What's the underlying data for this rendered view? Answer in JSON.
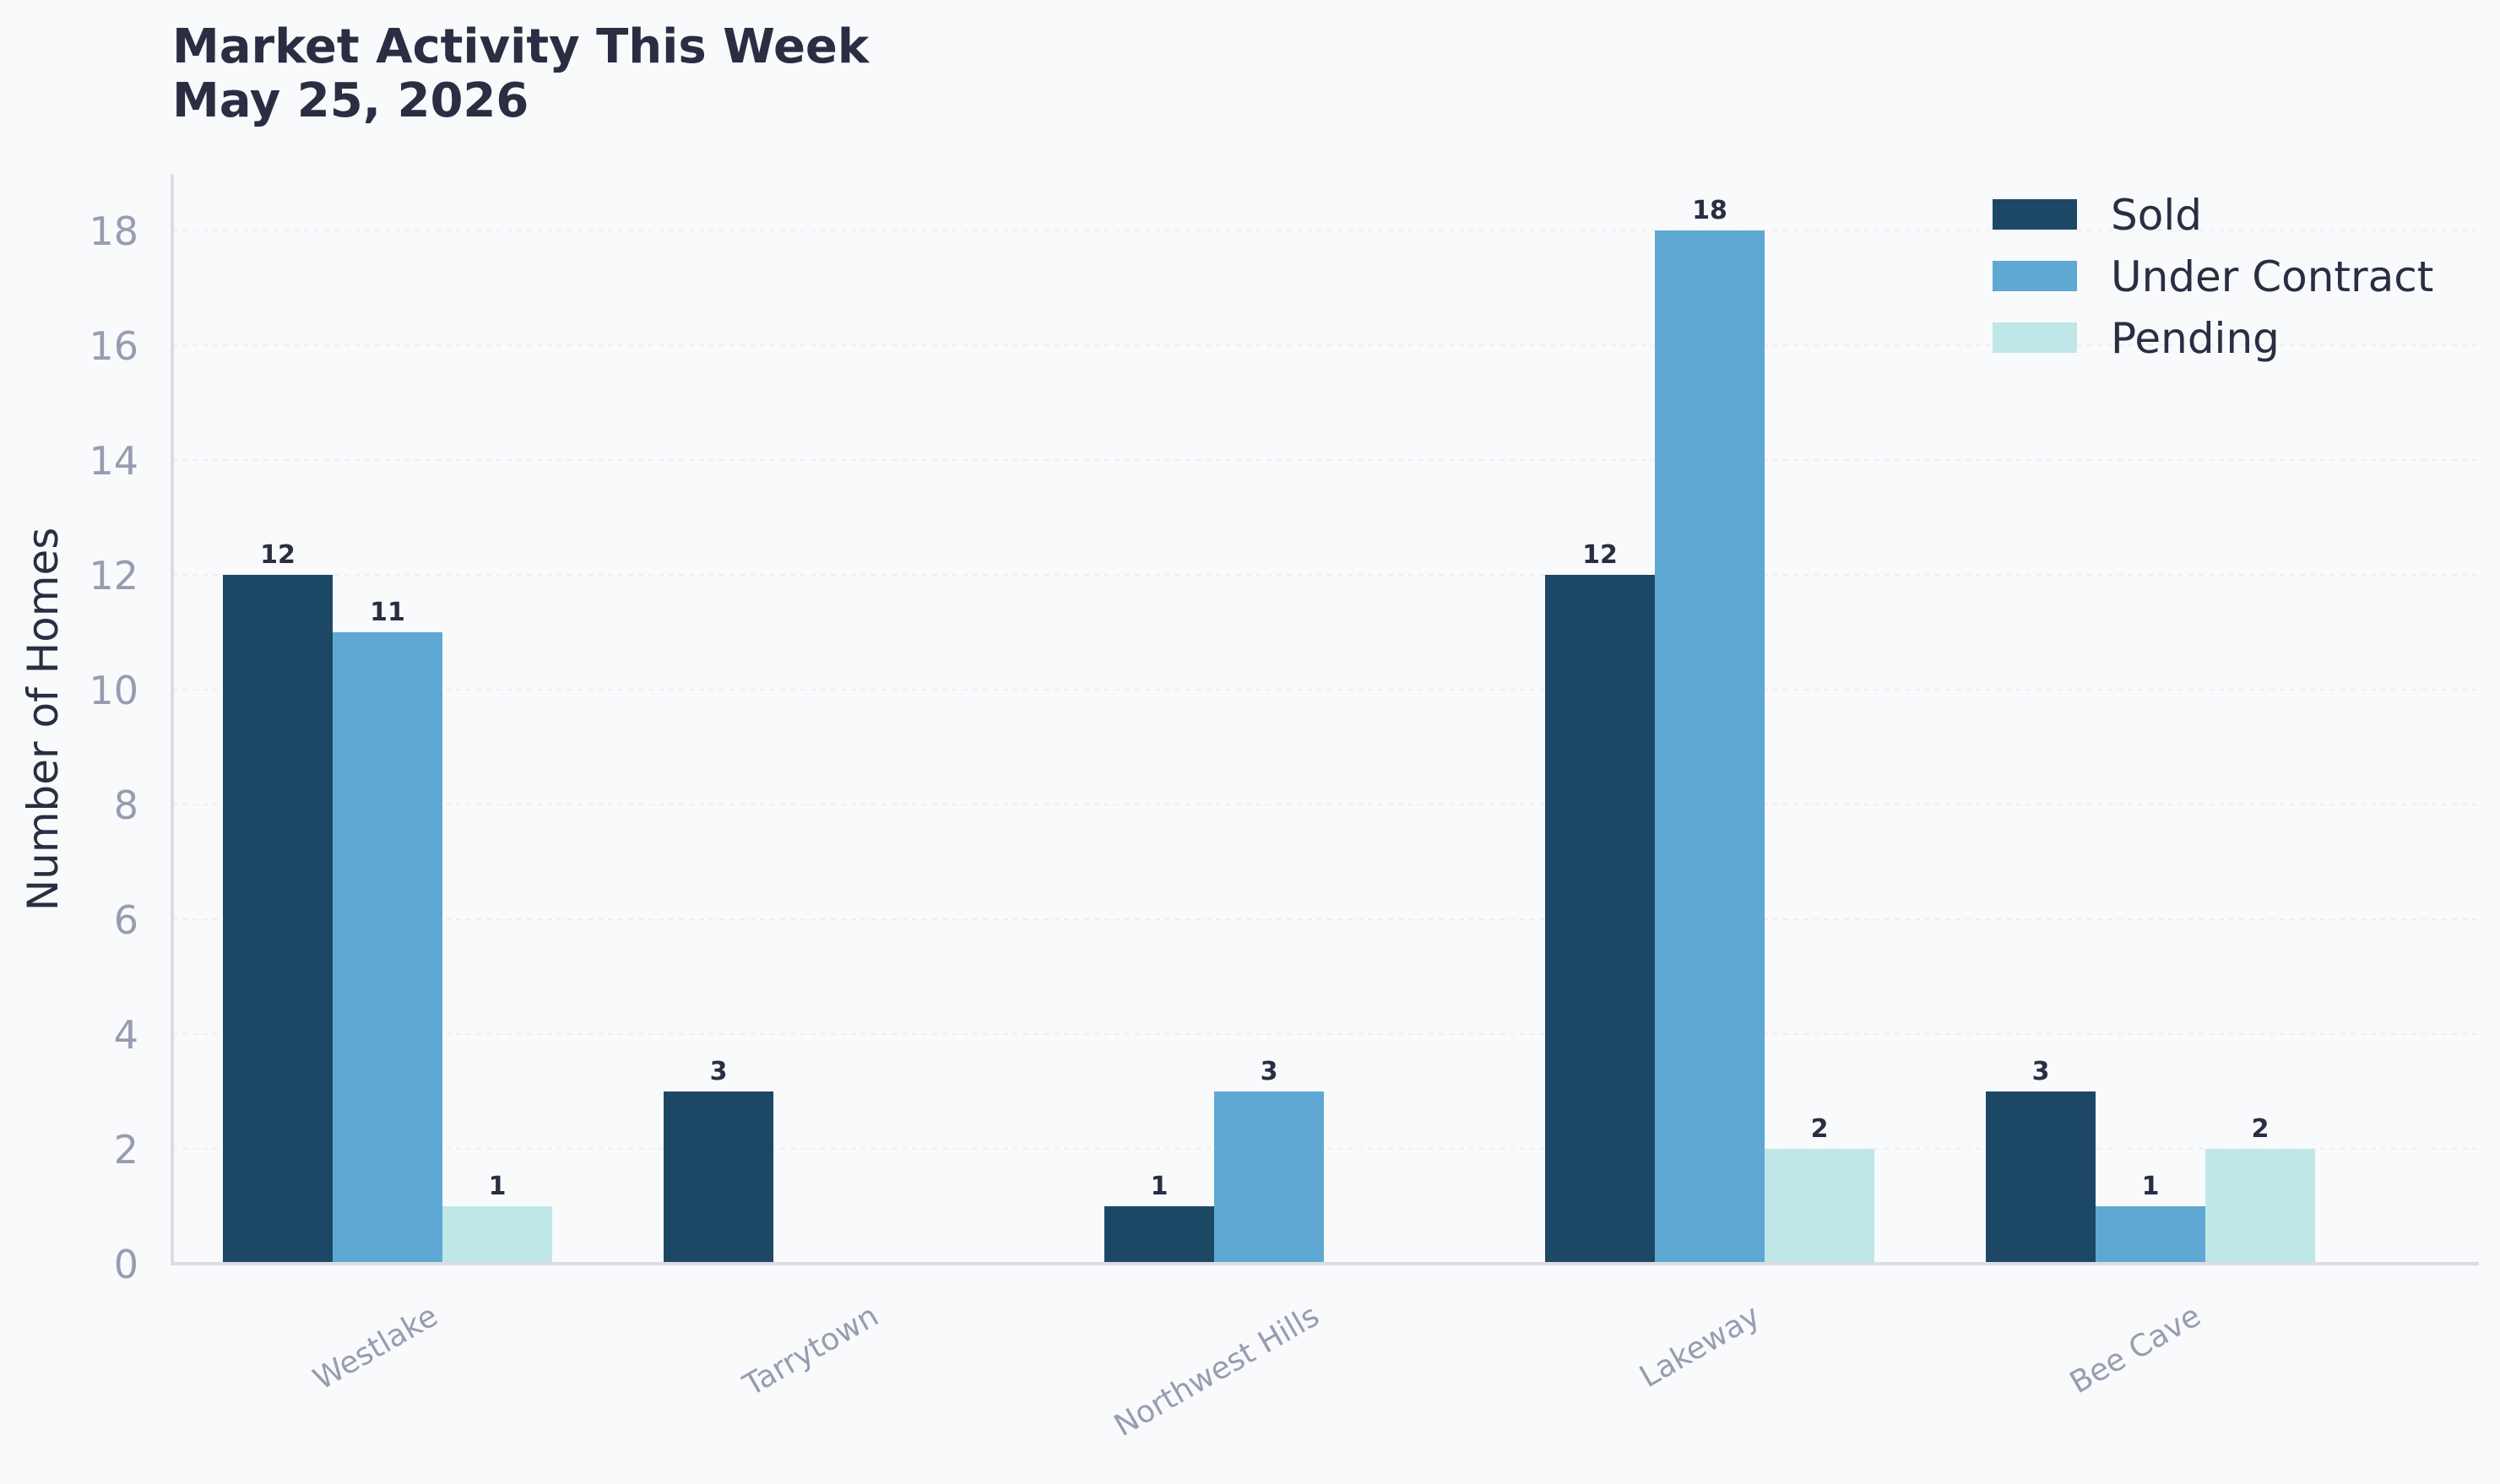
{
  "chart_data": {
    "type": "bar",
    "title": "Market Activity This Week",
    "subtitle": "May 25, 2026",
    "xlabel": "",
    "ylabel": "Number of Homes",
    "categories": [
      "Westlake",
      "Tarrytown",
      "Northwest Hills",
      "Lakeway",
      "Bee Cave"
    ],
    "series": [
      {
        "name": "Sold",
        "color": "#1c4866",
        "values": [
          12,
          3,
          1,
          12,
          3
        ]
      },
      {
        "name": "Under Contract",
        "color": "#5fa8d3",
        "values": [
          11,
          0,
          3,
          18,
          1
        ]
      },
      {
        "name": "Pending",
        "color": "#bfe7e7",
        "values": [
          1,
          0,
          0,
          2,
          2
        ]
      }
    ],
    "ylim": [
      0,
      19
    ],
    "yticks": [
      0,
      2,
      4,
      6,
      8,
      10,
      12,
      14,
      16,
      18
    ],
    "grid": true,
    "legend": "top-right",
    "data_labels": true,
    "colors": {
      "background": "#f9fafc",
      "text": "#2b2d42",
      "tick_text": "#9a9bb0",
      "axis": "#dcdde3",
      "grid": "#eeeff3"
    }
  }
}
